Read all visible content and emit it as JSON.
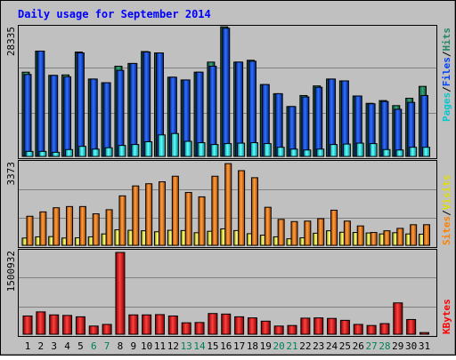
{
  "chart_data": [
    {
      "type": "bar",
      "title": "Daily usage for September 2014",
      "categories": [
        "1",
        "2",
        "3",
        "4",
        "5",
        "6",
        "7",
        "8",
        "9",
        "10",
        "11",
        "12",
        "13",
        "14",
        "15",
        "16",
        "17",
        "18",
        "19",
        "20",
        "21",
        "22",
        "23",
        "24",
        "25",
        "26",
        "27",
        "28",
        "29",
        "30",
        "31"
      ],
      "weekend_days": [
        "6",
        "7",
        "13",
        "14",
        "20",
        "21",
        "27",
        "28"
      ],
      "ymax_label": "28335",
      "ylim": [
        0,
        28335
      ],
      "legend": [
        "Pages",
        "/",
        "Files",
        "/",
        "Hits"
      ],
      "series": [
        {
          "name": "Hits",
          "color": "#228866",
          "values": [
            18400,
            23000,
            17700,
            17800,
            22800,
            16900,
            16100,
            19700,
            20300,
            22900,
            22600,
            17300,
            16700,
            18400,
            20600,
            28300,
            20600,
            21000,
            15700,
            13700,
            10900,
            13300,
            15400,
            16900,
            16500,
            13200,
            11600,
            12200,
            11100,
            12700,
            15300
          ]
        },
        {
          "name": "Files",
          "color": "#0040ff",
          "values": [
            17900,
            23000,
            17700,
            17400,
            22600,
            16900,
            16100,
            18800,
            20300,
            22800,
            22600,
            17300,
            16700,
            18400,
            19700,
            28000,
            20600,
            20800,
            15700,
            13700,
            10900,
            13000,
            15100,
            16900,
            16500,
            13200,
            11500,
            12000,
            10300,
            11800,
            13300
          ]
        },
        {
          "name": "Pages",
          "color": "#00e0e8",
          "values": [
            1100,
            1100,
            900,
            1500,
            2200,
            1600,
            1900,
            2400,
            2600,
            3200,
            4700,
            5000,
            3300,
            3000,
            2600,
            2800,
            2900,
            3000,
            2800,
            2000,
            1600,
            1400,
            1600,
            2600,
            2700,
            2900,
            2800,
            1500,
            1400,
            2000,
            2000
          ]
        }
      ]
    },
    {
      "type": "bar",
      "ymax_label": "3373",
      "ylim": [
        0,
        3373
      ],
      "legend": [
        "Sites",
        "/",
        "Visits"
      ],
      "series": [
        {
          "name": "Sites",
          "color": "#ff8000",
          "values": [
            1200,
            1380,
            1550,
            1600,
            1600,
            1300,
            1470,
            2040,
            2450,
            2540,
            2620,
            2850,
            2180,
            2000,
            2850,
            3370,
            3080,
            2790,
            1570,
            1070,
            980,
            1000,
            1100,
            1450,
            1000,
            800,
            530,
            600,
            700,
            850,
            850
          ]
        },
        {
          "name": "Visits",
          "color": "#ffff00",
          "values": [
            300,
            350,
            360,
            300,
            310,
            350,
            470,
            640,
            620,
            600,
            560,
            620,
            610,
            520,
            580,
            680,
            610,
            480,
            420,
            350,
            270,
            310,
            500,
            600,
            540,
            530,
            510,
            470,
            520,
            470,
            460
          ]
        }
      ]
    },
    {
      "type": "bar",
      "ymax_label": "1500932",
      "ylim": [
        0,
        1500932
      ],
      "legend": [
        "KBytes"
      ],
      "series": [
        {
          "name": "KBytes",
          "color": "#ff0000",
          "values": [
            335000,
            410000,
            355000,
            345000,
            320000,
            150000,
            180000,
            1500932,
            355000,
            355000,
            360000,
            335000,
            210000,
            215000,
            380000,
            370000,
            320000,
            300000,
            240000,
            150000,
            160000,
            295000,
            300000,
            290000,
            255000,
            180000,
            160000,
            195000,
            575000,
            270000,
            30000
          ]
        }
      ]
    }
  ]
}
